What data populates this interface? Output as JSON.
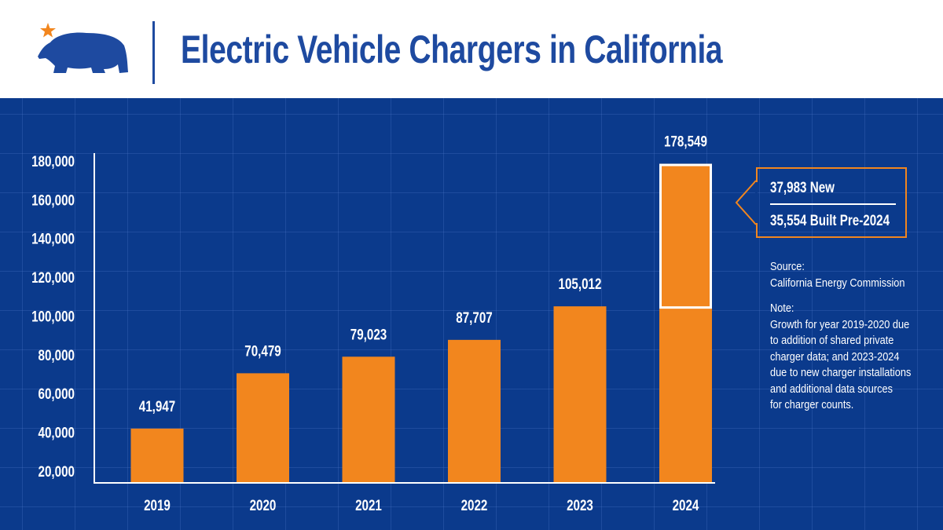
{
  "header": {
    "title": "Electric Vehicle Chargers in California",
    "logo": "california-bear-star-logo"
  },
  "colors": {
    "background": "#0b3a8c",
    "bar": "#f2861e",
    "title": "#1e4aa0",
    "star": "#f2861e"
  },
  "chart_data": {
    "type": "bar",
    "title": "Electric Vehicle Chargers in California",
    "categories": [
      "2019",
      "2020",
      "2021",
      "2022",
      "2023",
      "2024"
    ],
    "values": [
      41947,
      70479,
      79023,
      87707,
      105012,
      178549
    ],
    "data_labels": [
      "41,947",
      "70,479",
      "79,023",
      "87,707",
      "105,012",
      "178,549"
    ],
    "y_ticks": [
      "20,000",
      "40,000",
      "60,000",
      "80,000",
      "100,000",
      "120,000",
      "140,000",
      "160,000",
      "180,000"
    ],
    "ylim": [
      20000,
      180000
    ],
    "grid": true,
    "highlight": {
      "category": "2024",
      "from": 105012,
      "to": 178549,
      "outline": "#ffffff"
    }
  },
  "callout": {
    "line1": "37,983 New",
    "line2": "35,554 Built Pre-2024"
  },
  "source": {
    "label": "Source:",
    "text": "California Energy Commission"
  },
  "note": {
    "label": "Note:",
    "lines": [
      "Growth for year 2019-2020 due",
      "to addition of shared private",
      "charger data; and 2023-2024",
      "due to new charger installations",
      "and additional data sources",
      "for charger counts."
    ]
  }
}
